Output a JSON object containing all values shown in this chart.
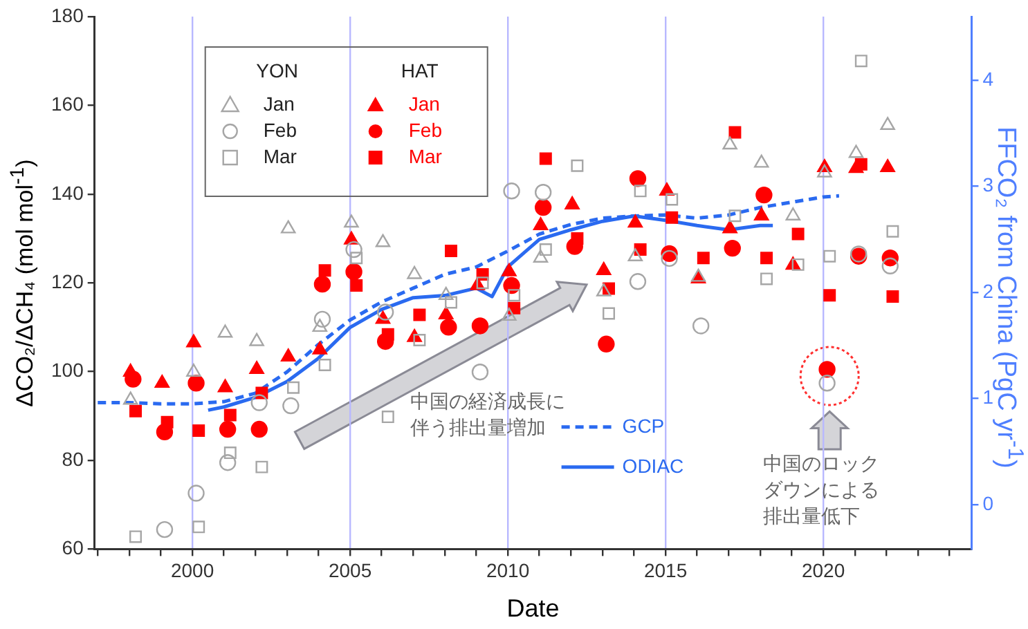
{
  "chart_data": {
    "type": "scatter",
    "xlabel": "Date",
    "ylabel": "ΔCO₂/ΔCH₄ (mol mol$^{-1}$)",
    "y2label": "FFCO₂ from China (PgC yr$^{-1}$)",
    "xlim": [
      1996.9,
      2024.7
    ],
    "ylim": [
      60,
      180
    ],
    "y2lim": [
      -0.42,
      4.6
    ],
    "xticks": [
      {
        "value": 1997,
        "label": null
      },
      {
        "value": 1998,
        "label": null
      },
      {
        "value": 1999,
        "label": null
      },
      2000,
      {
        "value": 2001,
        "label": null
      },
      {
        "value": 2002,
        "label": null
      },
      {
        "value": 2003,
        "label": null
      },
      {
        "value": 2004,
        "label": null
      },
      2005,
      {
        "value": 2006,
        "label": null
      },
      {
        "value": 2007,
        "label": null
      },
      {
        "value": 2008,
        "label": null
      },
      {
        "value": 2009,
        "label": null
      },
      2010,
      {
        "value": 2011,
        "label": null
      },
      {
        "value": 2012,
        "label": null
      },
      {
        "value": 2013,
        "label": null
      },
      {
        "value": 2014,
        "label": null
      },
      2015,
      {
        "value": 2016,
        "label": null
      },
      {
        "value": 2017,
        "label": null
      },
      {
        "value": 2018,
        "label": null
      },
      {
        "value": 2019,
        "label": null
      },
      2020,
      {
        "value": 2021,
        "label": null
      },
      {
        "value": 2022,
        "label": null
      },
      {
        "value": 2023,
        "label": null
      },
      {
        "value": 2024,
        "label": null
      }
    ],
    "yticks": [
      60,
      80,
      100,
      120,
      140,
      160,
      180
    ],
    "y2ticks": [
      0,
      1,
      2,
      3,
      4
    ],
    "grid": "x",
    "legend": "left",
    "legend_title": "YON",
    "annotations": [
      "HAT",
      "中国の経済成長に伴う排出量増加",
      "中国のロックダウンによる排出量低下"
    ],
    "series": [
      {
        "name": "Jan",
        "color": "#a6a6a6",
        "marker": "triangle",
        "x": [
          1998.04,
          2000.04,
          2001.04,
          2002.04,
          2003.04,
          2004.04,
          2005.04,
          2006.04,
          2007.04,
          2008.04,
          2009.04,
          2010.04,
          2011.04,
          2013.04,
          2014.04,
          2016.04,
          2017.04,
          2018.04,
          2019.04,
          2020.04,
          2021.04,
          2022.04
        ],
        "values": [
          93.6,
          99.9,
          108.7,
          106.8,
          132.2,
          110,
          133.5,
          129.1,
          121.9,
          117.2,
          null,
          112.5,
          125.6,
          118,
          125.9,
          121.3,
          151.1,
          147,
          135.1,
          144.8,
          149.2,
          155.5
        ]
      },
      {
        "name": "Feb",
        "color": "#a6a6a6",
        "marker": "circle",
        "x": [
          1999.12,
          2000.12,
          2001.12,
          2002.12,
          2003.12,
          2004.12,
          2005.12,
          2006.12,
          2009.12,
          2010.12,
          2011.12,
          2014.12,
          2015.12,
          2016.12,
          2020.12,
          2021.12,
          2022.12
        ],
        "values": [
          64.4,
          72.6,
          79.5,
          93,
          92.3,
          111.8,
          127.5,
          113.4,
          99.9,
          140.7,
          140.4,
          120.3,
          125.5,
          110.3,
          97.4,
          126.5,
          123.8
        ]
      },
      {
        "name": "Mar",
        "color": "#a6a6a6",
        "marker": "square",
        "x": [
          1998.2,
          2000.2,
          2001.2,
          2002.2,
          2003.2,
          2004.2,
          2005.2,
          2006.2,
          2007.2,
          2008.2,
          2009.2,
          2010.2,
          2011.2,
          2012.2,
          2013.2,
          2014.2,
          2015.2,
          2017.2,
          2018.2,
          2019.2,
          2020.2,
          2021.2,
          2022.2
        ],
        "values": [
          62.8,
          65,
          81.7,
          78.5,
          96.4,
          101.5,
          125.6,
          89.8,
          107.1,
          115.6,
          120,
          117.2,
          127.5,
          146.4,
          113.1,
          140.7,
          138.8,
          135.1,
          120.9,
          124.1,
          126,
          170,
          131.6
        ]
      },
      {
        "name": "Jan",
        "color": "#ff0000",
        "marker": "triangle",
        "x": [
          1998.04,
          1999.04,
          2000.04,
          2001.04,
          2002.04,
          2003.04,
          2004.04,
          2005.04,
          2006.04,
          2007.04,
          2008.04,
          2009.04,
          2010.04,
          2011.04,
          2012.04,
          2013.04,
          2014.04,
          2015.04,
          2016.04,
          2017.04,
          2018.04,
          2019.04,
          2020.04,
          2021.04,
          2022.04
        ],
        "values": [
          99.9,
          97.4,
          106.5,
          96.4,
          100.5,
          103.3,
          104.9,
          129.7,
          111.8,
          107.7,
          112.8,
          119.4,
          122.5,
          132.9,
          137.6,
          122.8,
          133.5,
          140.7,
          120.9,
          132.2,
          135.1,
          124,
          146,
          145.8,
          146
        ]
      },
      {
        "name": "Feb",
        "color": "#ff0000",
        "marker": "circle",
        "x": [
          1998.12,
          1999.12,
          2000.12,
          2001.12,
          2002.12,
          2004.12,
          2005.12,
          2006.12,
          2007.12,
          2008.12,
          2009.12,
          2010.12,
          2011.12,
          2012.12,
          2013.12,
          2014.12,
          2015.12,
          2016.12,
          2017.12,
          2018.12,
          2020.12,
          2021.12,
          2022.12
        ],
        "values": [
          98.3,
          86.4,
          97.4,
          87,
          87,
          119.7,
          122.5,
          106.8,
          null,
          110,
          110.3,
          119.4,
          137,
          128.2,
          106.2,
          143.5,
          126.6,
          null,
          127.8,
          139.8,
          100.5,
          126,
          125.6
        ]
      },
      {
        "name": "Mar",
        "color": "#ff0000",
        "marker": "square",
        "x": [
          1998.2,
          1999.2,
          2000.2,
          2001.2,
          2002.2,
          2004.2,
          2005.2,
          2006.2,
          2007.2,
          2008.2,
          2009.2,
          2010.2,
          2011.2,
          2012.2,
          2013.2,
          2014.2,
          2015.2,
          2016.2,
          2017.2,
          2018.2,
          2019.2,
          2020.2,
          2021.2,
          2022.2
        ],
        "values": [
          91.1,
          88.6,
          86.7,
          90.2,
          95.2,
          122.8,
          119.4,
          108.4,
          112.8,
          127.2,
          121.9,
          114.3,
          148,
          130,
          118.7,
          127.5,
          134.7,
          125.6,
          153.9,
          125.6,
          131,
          117.2,
          146.7,
          116.9
        ]
      },
      {
        "name": "GCP",
        "type": "line",
        "axis": "y2",
        "color": "#2a6af0",
        "marker": "none",
        "line_style": "dashed",
        "x": [
          1997,
          1998,
          1999,
          2000,
          2001,
          2002,
          2003,
          2004,
          2005,
          2006,
          2007,
          2008,
          2009,
          2010,
          2011,
          2012,
          2013,
          2014,
          2015,
          2016,
          2017,
          2018,
          2019,
          2020,
          2020.5
        ],
        "values": [
          0.96,
          0.96,
          0.95,
          0.95,
          0.97,
          1.05,
          1.25,
          1.51,
          1.74,
          1.91,
          2.04,
          2.17,
          2.24,
          2.39,
          2.55,
          2.64,
          2.7,
          2.72,
          2.73,
          2.7,
          2.73,
          2.8,
          2.85,
          2.9,
          2.91
        ]
      },
      {
        "name": "ODIAC",
        "type": "line",
        "axis": "y2",
        "color": "#2a6af0",
        "marker": "none",
        "line_style": "solid",
        "x": [
          2000.5,
          2001,
          2002,
          2003,
          2004,
          2005,
          2006,
          2007,
          2008,
          2009,
          2009.5,
          2010,
          2011,
          2012,
          2013,
          2014,
          2015,
          2016,
          2017,
          2018,
          2018.4
        ],
        "values": [
          0.89,
          0.92,
          1.01,
          1.16,
          1.38,
          1.67,
          1.84,
          1.95,
          1.97,
          2.04,
          1.96,
          2.24,
          2.5,
          2.59,
          2.67,
          2.72,
          2.68,
          2.63,
          2.59,
          2.63,
          2.63
        ]
      }
    ]
  }
}
